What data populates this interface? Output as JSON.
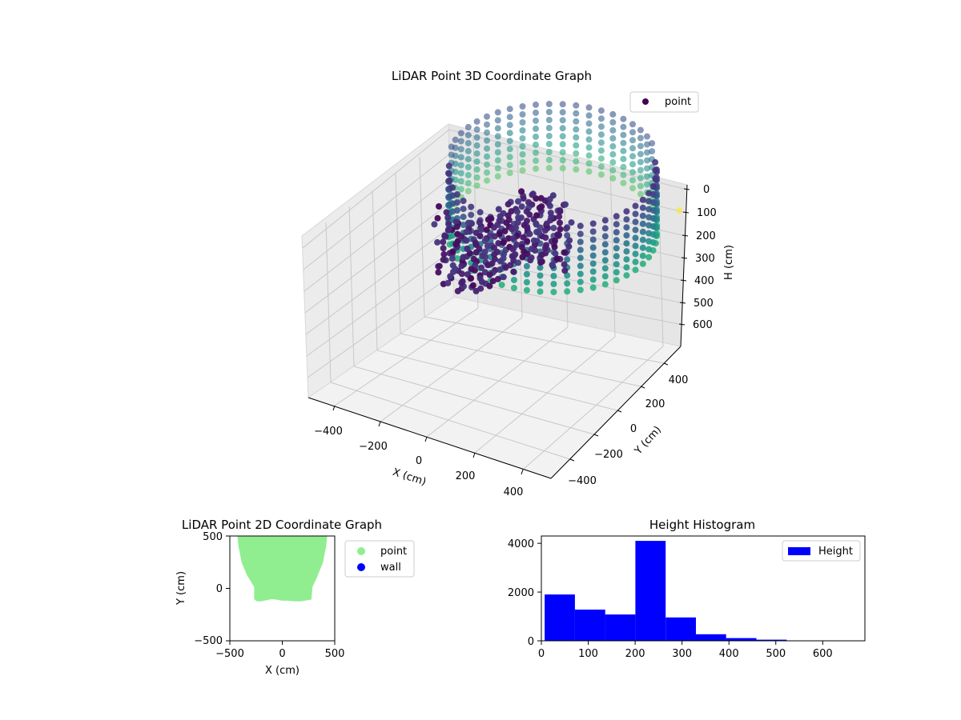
{
  "chart_data": [
    {
      "type": "scatter3d",
      "title": "LiDAR Point 3D Coordinate Graph",
      "xlabel": "X (cm)",
      "ylabel": "Y (cm)",
      "zlabel": "H (cm)",
      "xlim": [
        -500,
        500
      ],
      "ylim": [
        -500,
        500
      ],
      "zlim": [
        0,
        700
      ],
      "z_inverted": true,
      "xticks": [
        "−400",
        "−200",
        "0",
        "200",
        "400"
      ],
      "yticks": [
        "−400",
        "−200",
        "0",
        "200",
        "400"
      ],
      "zticks": [
        "0",
        "100",
        "200",
        "300",
        "400",
        "500",
        "600"
      ],
      "legend": {
        "position": "top-right",
        "entries": [
          {
            "label": "point",
            "color": "#440154"
          }
        ]
      },
      "colormap": "viridis",
      "grid": true,
      "description_points": "ring of points around the sensor plus a dense cluster at negative X; color encodes height"
    },
    {
      "type": "scatter",
      "title": "LiDAR Point 2D Coordinate Graph",
      "xlabel": "X (cm)",
      "ylabel": "Y (cm)",
      "xlim": [
        -500,
        500
      ],
      "ylim": [
        -500,
        500
      ],
      "xticks": [
        "−500",
        "0",
        "500"
      ],
      "yticks": [
        "−500",
        "0",
        "500"
      ],
      "legend": {
        "position": "outside-right",
        "entries": [
          {
            "label": "point",
            "color": "#90ee90"
          },
          {
            "label": "wall",
            "color": "#0000ff"
          }
        ]
      },
      "region_outline": [
        [
          -420,
          500
        ],
        [
          -410,
          400
        ],
        [
          -380,
          250
        ],
        [
          -330,
          130
        ],
        [
          -260,
          15
        ],
        [
          -260,
          -100
        ],
        [
          -240,
          -115
        ],
        [
          -200,
          -115
        ],
        [
          -150,
          -105
        ],
        [
          -100,
          -95
        ],
        [
          -50,
          -100
        ],
        [
          0,
          -110
        ],
        [
          50,
          -110
        ],
        [
          120,
          -115
        ],
        [
          180,
          -115
        ],
        [
          270,
          -100
        ],
        [
          280,
          15
        ],
        [
          320,
          100
        ],
        [
          380,
          250
        ],
        [
          410,
          400
        ],
        [
          420,
          500
        ]
      ]
    },
    {
      "type": "bar",
      "title": "Height Histogram",
      "xlabel": "",
      "ylabel": "",
      "xlim": [
        0,
        690
      ],
      "ylim": [
        0,
        4300
      ],
      "xticks": [
        "0",
        "100",
        "200",
        "300",
        "400",
        "500",
        "600"
      ],
      "yticks": [
        "0",
        "2000",
        "4000"
      ],
      "bin_edges": [
        7,
        71.5,
        136,
        200.5,
        265,
        329.5,
        394,
        458.5,
        523,
        587.5,
        652
      ],
      "values": [
        1900,
        1280,
        1080,
        4100,
        960,
        270,
        110,
        45,
        15,
        6
      ],
      "color": "#0000ff",
      "legend": {
        "position": "top-right",
        "entries": [
          {
            "label": "Height",
            "color": "#0000ff"
          }
        ]
      }
    }
  ]
}
